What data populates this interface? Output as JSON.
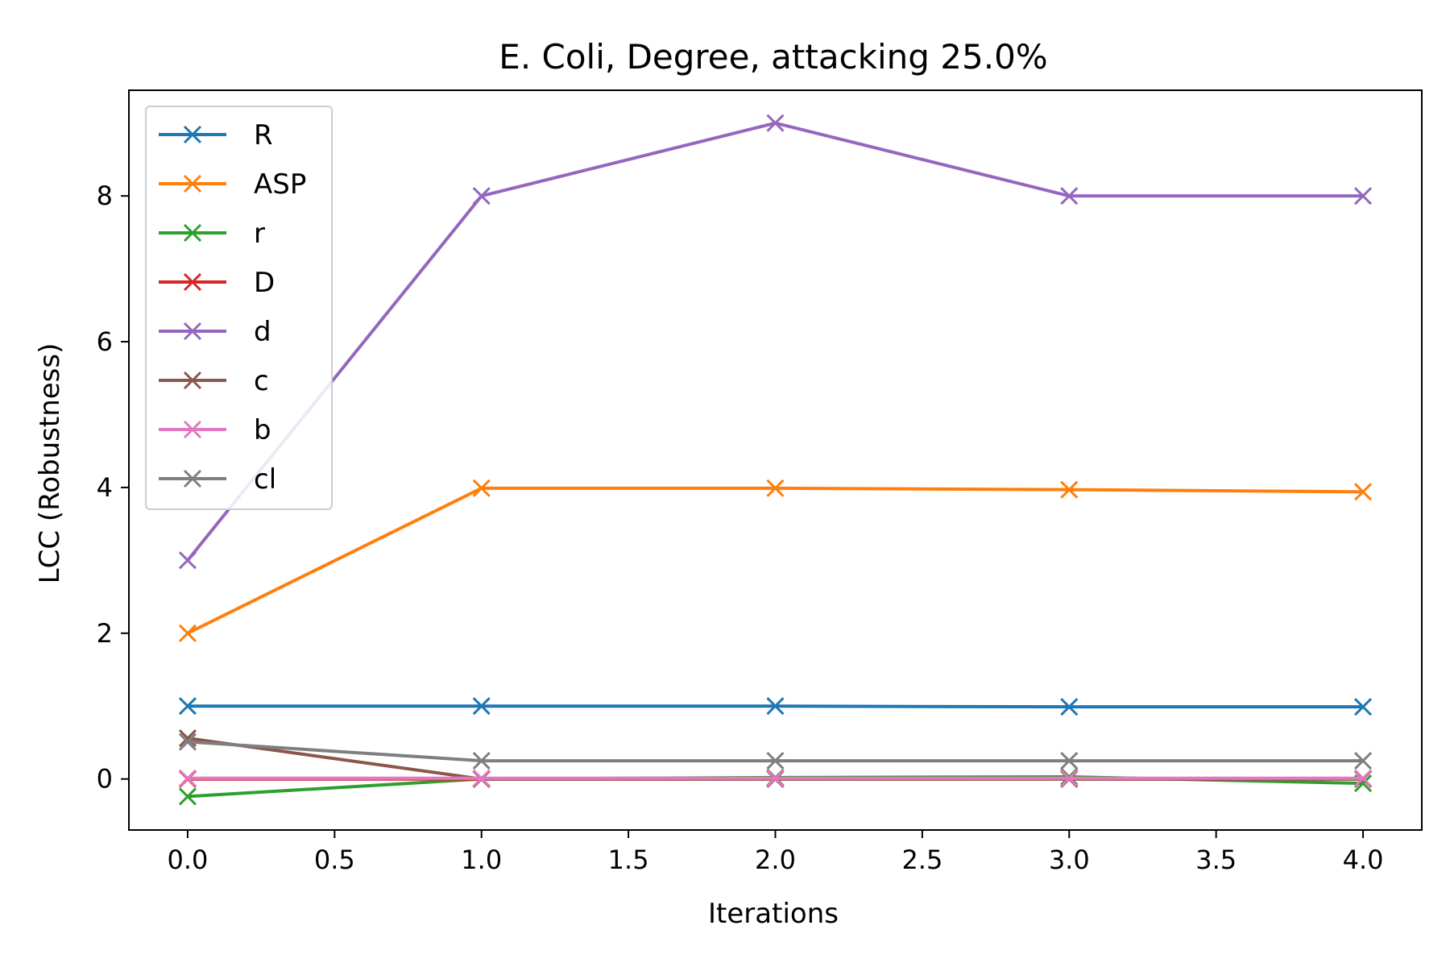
{
  "chart_data": {
    "type": "line",
    "title": "E. Coli, Degree, attacking 25.0%",
    "xlabel": "Iterations",
    "ylabel": "LCC (Robustness)",
    "xlim": [
      -0.2,
      4.2
    ],
    "ylim": [
      -0.7,
      9.45
    ],
    "x_ticks": [
      "0.0",
      "0.5",
      "1.0",
      "1.5",
      "2.0",
      "2.5",
      "3.0",
      "3.5",
      "4.0"
    ],
    "y_ticks": [
      "0",
      "2",
      "4",
      "6",
      "8"
    ],
    "grid": false,
    "legend_position": "top-left",
    "marker": "x",
    "x": [
      0,
      1,
      2,
      3,
      4
    ],
    "series": [
      {
        "name": "R",
        "color": "#1f77b4",
        "values": [
          1.0,
          1.0,
          1.0,
          0.99,
          0.99
        ]
      },
      {
        "name": "ASP",
        "color": "#ff7f0e",
        "values": [
          2.0,
          3.99,
          3.99,
          3.97,
          3.94
        ]
      },
      {
        "name": "r",
        "color": "#2ca02c",
        "values": [
          -0.24,
          0.0,
          0.02,
          0.03,
          -0.06
        ]
      },
      {
        "name": "D",
        "color": "#d62728",
        "values": [
          0.0,
          0.0,
          0.0,
          0.0,
          0.0
        ]
      },
      {
        "name": "d",
        "color": "#9467bd",
        "values": [
          3.0,
          8.0,
          9.0,
          8.0,
          8.0
        ]
      },
      {
        "name": "c",
        "color": "#8c564b",
        "values": [
          0.56,
          0.0,
          0.0,
          0.0,
          0.0
        ]
      },
      {
        "name": "b",
        "color": "#e377c2",
        "values": [
          0.01,
          0.01,
          0.01,
          0.01,
          0.01
        ]
      },
      {
        "name": "cl",
        "color": "#7f7f7f",
        "values": [
          0.51,
          0.25,
          0.25,
          0.25,
          0.25
        ]
      }
    ]
  }
}
